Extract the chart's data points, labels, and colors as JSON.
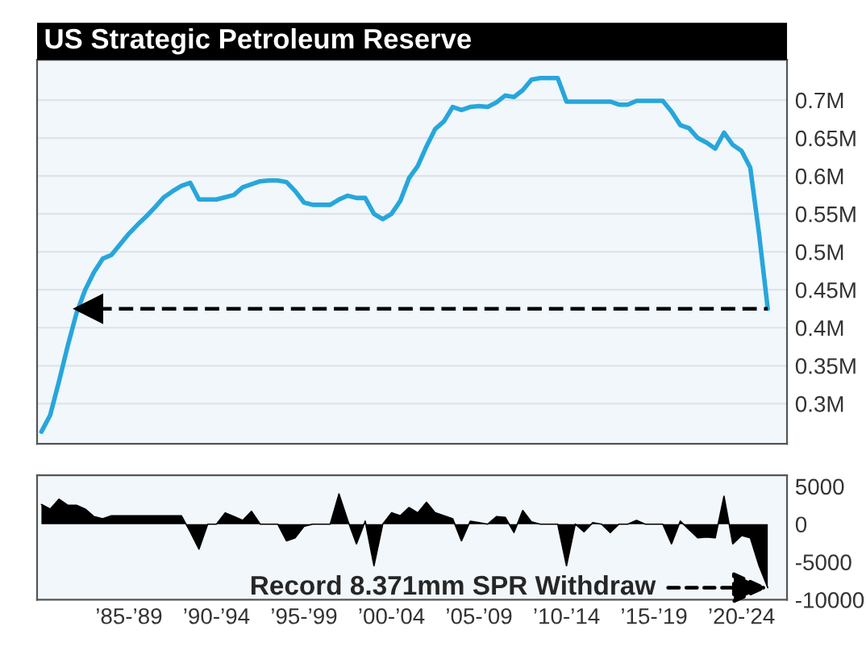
{
  "chart_data": [
    {
      "type": "line",
      "title": "US Strategic Petroleum Reserve",
      "categories": [
        null,
        null,
        null,
        null,
        null,
        null,
        null,
        null,
        null,
        null,
        null,
        null,
        null,
        null,
        null,
        null,
        null,
        null,
        null,
        null,
        null,
        null,
        null,
        null,
        null,
        null,
        null,
        null,
        null,
        null,
        null,
        null,
        null,
        null,
        null,
        null,
        null,
        null,
        null,
        null,
        null,
        null,
        null,
        null,
        null,
        null,
        null,
        null,
        null,
        null,
        null,
        null,
        null,
        null,
        null,
        null,
        null,
        null,
        null,
        null,
        null,
        null,
        null,
        null,
        null,
        null,
        null,
        null,
        null,
        null,
        null,
        null,
        null,
        null,
        null,
        null,
        null,
        null,
        null,
        null,
        null,
        null,
        null,
        null
      ],
      "series": [
        {
          "color": "#27a6dc",
          "values": [
            0.263,
            0.285,
            0.329,
            0.376,
            0.419,
            0.45,
            0.473,
            0.491,
            0.496,
            0.51,
            0.524,
            0.536,
            0.547,
            0.559,
            0.572,
            0.58,
            0.587,
            0.591,
            0.569,
            0.569,
            0.569,
            0.572,
            0.575,
            0.585,
            0.589,
            0.593,
            0.594,
            0.594,
            0.592,
            0.58,
            0.565,
            0.562,
            0.562,
            0.562,
            0.569,
            0.574,
            0.571,
            0.571,
            0.55,
            0.543,
            0.55,
            0.567,
            0.597,
            0.613,
            0.639,
            0.662,
            0.672,
            0.691,
            0.687,
            0.691,
            0.692,
            0.691,
            0.697,
            0.706,
            0.704,
            0.713,
            0.727,
            0.729,
            0.729,
            0.729,
            0.698,
            0.698,
            0.698,
            0.698,
            0.698,
            0.698,
            0.694,
            0.694,
            0.699,
            0.699,
            0.699,
            0.699,
            0.685,
            0.667,
            0.663,
            0.65,
            0.644,
            0.636,
            0.657,
            0.641,
            0.633,
            0.611,
            0.524,
            0.425
          ]
        }
      ],
      "ylim": [
        0.247,
        0.753
      ],
      "yticks": [
        {
          "value": 0.3,
          "label": "0.3M"
        },
        {
          "value": 0.35,
          "label": "0.35M"
        },
        {
          "value": 0.4,
          "label": "0.4M"
        },
        {
          "value": 0.45,
          "label": "0.45M"
        },
        {
          "value": 0.5,
          "label": "0.5M"
        },
        {
          "value": 0.55,
          "label": "0.55M"
        },
        {
          "value": 0.6,
          "label": "0.6M"
        },
        {
          "value": 0.65,
          "label": "0.65M"
        },
        {
          "value": 0.7,
          "label": "0.7M"
        }
      ],
      "ref_lines": [
        {
          "axis": "y",
          "value": 0.425,
          "color": "#000000",
          "line_style": "dashed"
        }
      ],
      "grid": "y",
      "tick_labels": "y"
    },
    {
      "type": "area",
      "categories": [
        null,
        null,
        null,
        null,
        null,
        null,
        null,
        null,
        null,
        null,
        "’85-’89",
        null,
        null,
        null,
        null,
        null,
        null,
        null,
        null,
        null,
        "’90-’94",
        null,
        null,
        null,
        null,
        null,
        null,
        null,
        null,
        null,
        "’95-’99",
        null,
        null,
        null,
        null,
        null,
        null,
        null,
        null,
        null,
        "’00-’04",
        null,
        null,
        null,
        null,
        null,
        null,
        null,
        null,
        null,
        "’05-’09",
        null,
        null,
        null,
        null,
        null,
        null,
        null,
        null,
        null,
        "’10-’14",
        null,
        null,
        null,
        null,
        null,
        null,
        null,
        null,
        null,
        "’15-’19",
        null,
        null,
        null,
        null,
        null,
        null,
        null,
        null,
        null,
        "’20-’24",
        null,
        null,
        null
      ],
      "series": [
        {
          "color": "#000000",
          "values": [
            2600,
            2000,
            3300,
            2500,
            2500,
            2000,
            1000,
            700,
            1100,
            1100,
            1100,
            1100,
            1100,
            1100,
            1100,
            1100,
            1100,
            -1000,
            -3300,
            0,
            0,
            1500,
            1000,
            500,
            1700,
            0,
            0,
            0,
            -2200,
            -1800,
            -300,
            0,
            0,
            0,
            4000,
            500,
            -2600,
            400,
            -5500,
            0,
            1500,
            1100,
            2200,
            1500,
            2900,
            1500,
            1100,
            700,
            -2200,
            400,
            200,
            0,
            1000,
            900,
            -1100,
            1800,
            300,
            0,
            0,
            0,
            -5500,
            0,
            -1000,
            200,
            0,
            -1100,
            0,
            0,
            500,
            0,
            0,
            0,
            -2600,
            400,
            -700,
            -1800,
            -1700,
            -1800,
            3700,
            -2600,
            -1500,
            -1800,
            -5500,
            -8400
          ]
        }
      ],
      "ylim": [
        -10000,
        6470
      ],
      "yticks": [
        5000,
        0,
        -5000,
        -10000
      ],
      "annotations": [
        "Record 8.371mm SPR Withdraw"
      ]
    }
  ]
}
